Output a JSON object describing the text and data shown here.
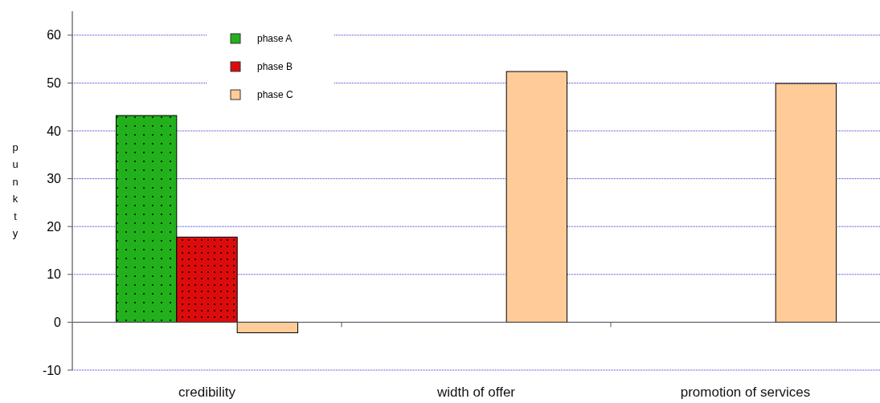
{
  "chart_data": {
    "type": "bar",
    "ylabel": "punkty",
    "categories": [
      "credibility",
      "width of offer",
      "promotion of services"
    ],
    "series": [
      {
        "name": "phase A",
        "color": "#22b11c",
        "values": [
          43.2,
          null,
          null
        ]
      },
      {
        "name": "phase B",
        "color": "#dd0c0c",
        "values": [
          17.8,
          null,
          null
        ]
      },
      {
        "name": "phase C",
        "color": "#ffcc99",
        "values": [
          -2.2,
          52.4,
          49.9
        ]
      }
    ],
    "ylim": [
      -10,
      65
    ],
    "yticks": [
      -10,
      0,
      10,
      20,
      30,
      40,
      50,
      60
    ],
    "grid": "y",
    "legend": "top left"
  }
}
